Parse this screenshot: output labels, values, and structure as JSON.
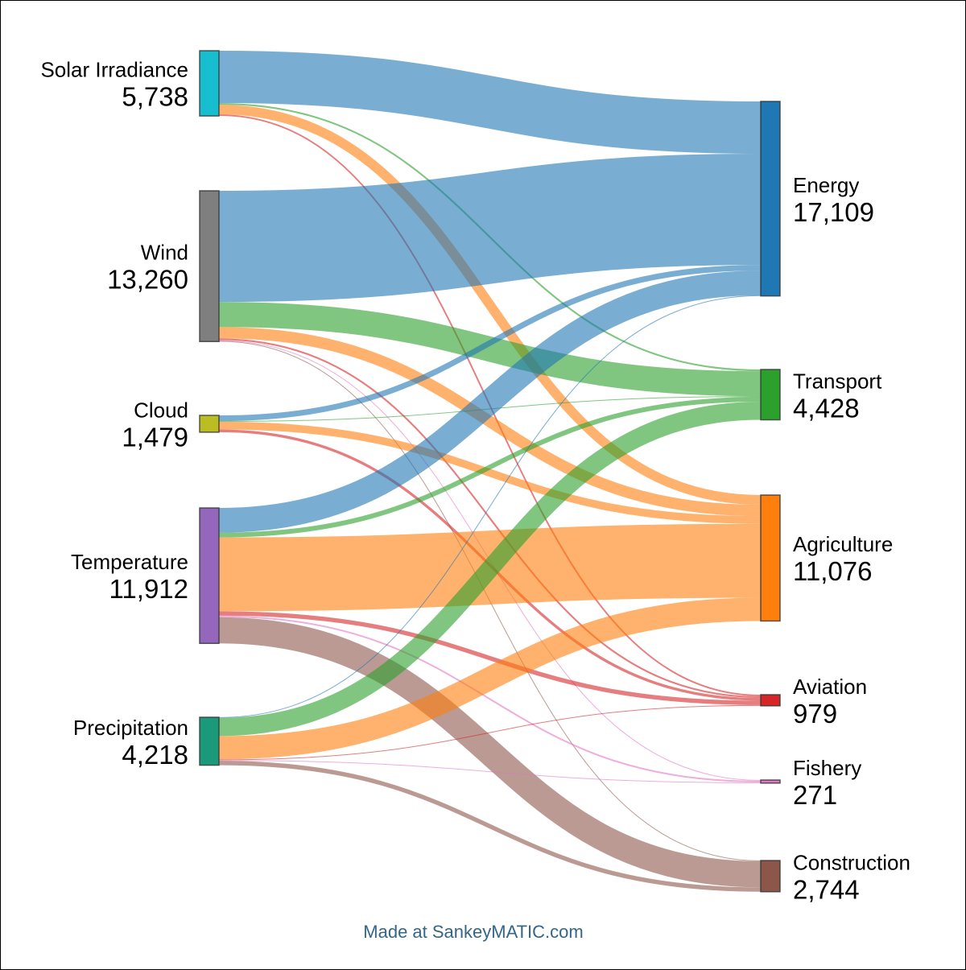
{
  "chart_data": {
    "type": "sankey",
    "title": "",
    "footer": "Made at SankeyMATIC.com",
    "sources": [
      {
        "id": "solar",
        "name": "Solar Irradiance",
        "value": 5738,
        "value_label": "5,738",
        "color": "#17becf"
      },
      {
        "id": "wind",
        "name": "Wind",
        "value": 13260,
        "value_label": "13,260",
        "color": "#7f7f7f"
      },
      {
        "id": "cloud",
        "name": "Cloud",
        "value": 1479,
        "value_label": "1,479",
        "color": "#bcbd22"
      },
      {
        "id": "temperature",
        "name": "Temperature",
        "value": 11912,
        "value_label": "11,912",
        "color": "#9467bd"
      },
      {
        "id": "precipitation",
        "name": "Precipitation",
        "value": 4218,
        "value_label": "4,218",
        "color": "#1a9a7a"
      }
    ],
    "targets": [
      {
        "id": "energy",
        "name": "Energy",
        "value": 17109,
        "value_label": "17,109",
        "color": "#1f77b4"
      },
      {
        "id": "transport",
        "name": "Transport",
        "value": 4428,
        "value_label": "4,428",
        "color": "#2ca02c"
      },
      {
        "id": "agriculture",
        "name": "Agriculture",
        "value": 11076,
        "value_label": "11,076",
        "color": "#ff7f0e"
      },
      {
        "id": "aviation",
        "name": "Aviation",
        "value": 979,
        "value_label": "979",
        "color": "#d62728"
      },
      {
        "id": "fishery",
        "name": "Fishery",
        "value": 271,
        "value_label": "271",
        "color": "#e377c2"
      },
      {
        "id": "construction",
        "name": "Construction",
        "value": 2744,
        "value_label": "2,744",
        "color": "#8c564b"
      }
    ],
    "flows": [
      {
        "source": "solar",
        "target": "energy",
        "value": 4600
      },
      {
        "source": "solar",
        "target": "transport",
        "value": 150
      },
      {
        "source": "solar",
        "target": "agriculture",
        "value": 850
      },
      {
        "source": "solar",
        "target": "aviation",
        "value": 138
      },
      {
        "source": "wind",
        "target": "energy",
        "value": 9780
      },
      {
        "source": "wind",
        "target": "transport",
        "value": 2200
      },
      {
        "source": "wind",
        "target": "agriculture",
        "value": 1000
      },
      {
        "source": "wind",
        "target": "aviation",
        "value": 150
      },
      {
        "source": "wind",
        "target": "fishery",
        "value": 70
      },
      {
        "source": "wind",
        "target": "construction",
        "value": 60
      },
      {
        "source": "cloud",
        "target": "energy",
        "value": 500
      },
      {
        "source": "cloud",
        "target": "transport",
        "value": 60
      },
      {
        "source": "cloud",
        "target": "agriculture",
        "value": 680
      },
      {
        "source": "cloud",
        "target": "aviation",
        "value": 239
      },
      {
        "source": "temperature",
        "target": "energy",
        "value": 2170
      },
      {
        "source": "temperature",
        "target": "transport",
        "value": 420
      },
      {
        "source": "temperature",
        "target": "agriculture",
        "value": 6500
      },
      {
        "source": "temperature",
        "target": "aviation",
        "value": 380
      },
      {
        "source": "temperature",
        "target": "fishery",
        "value": 140
      },
      {
        "source": "temperature",
        "target": "construction",
        "value": 2302
      },
      {
        "source": "precipitation",
        "target": "energy",
        "value": 59
      },
      {
        "source": "precipitation",
        "target": "transport",
        "value": 1598
      },
      {
        "source": "precipitation",
        "target": "agriculture",
        "value": 2046
      },
      {
        "source": "precipitation",
        "target": "aviation",
        "value": 72
      },
      {
        "source": "precipitation",
        "target": "fishery",
        "value": 61
      },
      {
        "source": "precipitation",
        "target": "construction",
        "value": 382
      }
    ]
  }
}
